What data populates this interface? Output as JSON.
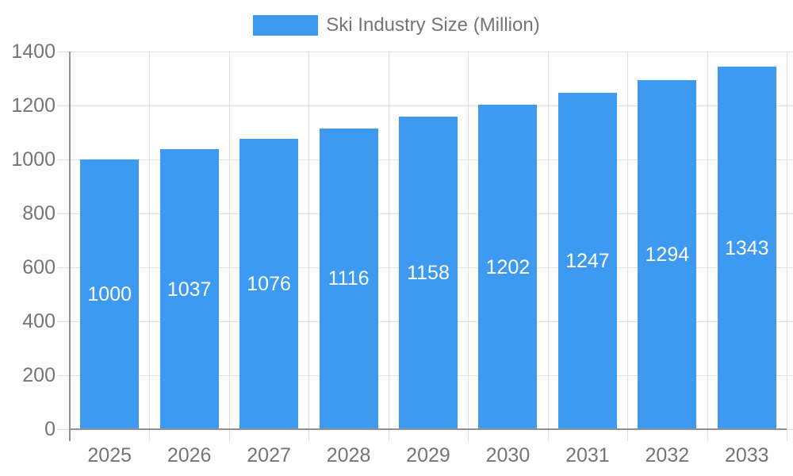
{
  "chart_data": {
    "type": "bar",
    "title": "Ski Industry Size (Million)",
    "legend": {
      "label": "Ski Industry Size (Million)",
      "position": "top-center"
    },
    "categories": [
      "2025",
      "2026",
      "2027",
      "2028",
      "2029",
      "2030",
      "2031",
      "2032",
      "2033"
    ],
    "series": [
      {
        "name": "Ski Industry Size (Million)",
        "values": [
          1000,
          1037,
          1076,
          1116,
          1158,
          1202,
          1247,
          1294,
          1343
        ]
      }
    ],
    "xlabel": "",
    "ylabel": "",
    "ylim": [
      0,
      1400
    ],
    "ytick_step": 200,
    "ytick_labels": [
      "0",
      "200",
      "400",
      "600",
      "800",
      "1000",
      "1200",
      "1400"
    ],
    "grid": true,
    "data_labels": {
      "visible": true,
      "position": "inside-center",
      "color": "#ffffff"
    }
  },
  "colors": {
    "bar": "#3d9af0",
    "axis_line": "#919191",
    "gridline": "#e0e0e0",
    "axis_text": "#757575",
    "bar_label_text": "#ffffff",
    "background": "#ffffff"
  }
}
